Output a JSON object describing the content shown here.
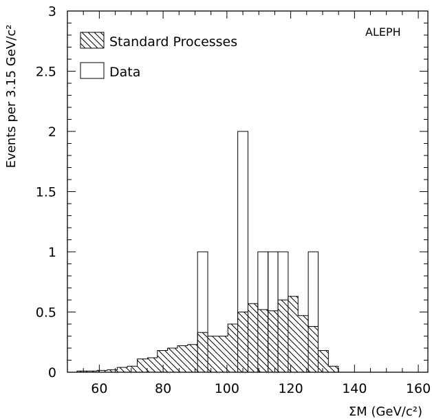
{
  "chart_data": {
    "type": "bar",
    "title": "",
    "experiment_label": "ALEPH",
    "xlabel": "ΣM (GeV/c²)",
    "ylabel": "Events per 3.15 GeV/c²",
    "xlim": [
      50,
      163
    ],
    "ylim": [
      0,
      3
    ],
    "xticks": [
      60,
      80,
      100,
      120,
      140,
      160
    ],
    "yticks": [
      0,
      0.5,
      1,
      1.5,
      2,
      2.5,
      3
    ],
    "ytick_labels": [
      "0",
      "0.5",
      "1",
      "1.5",
      "2",
      "2.5",
      "3"
    ],
    "legend_position": "top-left",
    "grid": false,
    "series": [
      {
        "name": "Standard Processes",
        "style": "hatched-histogram",
        "bins": [
          {
            "lo": 53.0,
            "hi": 56.2,
            "value": 0.01
          },
          {
            "lo": 56.2,
            "hi": 59.3,
            "value": 0.01
          },
          {
            "lo": 59.3,
            "hi": 62.5,
            "value": 0.015
          },
          {
            "lo": 62.5,
            "hi": 65.6,
            "value": 0.02
          },
          {
            "lo": 65.6,
            "hi": 68.8,
            "value": 0.04
          },
          {
            "lo": 68.8,
            "hi": 71.9,
            "value": 0.05
          },
          {
            "lo": 71.9,
            "hi": 75.1,
            "value": 0.11
          },
          {
            "lo": 75.1,
            "hi": 78.2,
            "value": 0.12
          },
          {
            "lo": 78.2,
            "hi": 81.4,
            "value": 0.18
          },
          {
            "lo": 81.4,
            "hi": 84.5,
            "value": 0.2
          },
          {
            "lo": 84.5,
            "hi": 87.7,
            "value": 0.22
          },
          {
            "lo": 87.7,
            "hi": 90.8,
            "value": 0.23
          },
          {
            "lo": 90.8,
            "hi": 94.0,
            "value": 0.33
          },
          {
            "lo": 94.0,
            "hi": 97.1,
            "value": 0.3
          },
          {
            "lo": 97.1,
            "hi": 100.3,
            "value": 0.3
          },
          {
            "lo": 100.3,
            "hi": 103.4,
            "value": 0.4
          },
          {
            "lo": 103.4,
            "hi": 106.6,
            "value": 0.5
          },
          {
            "lo": 106.6,
            "hi": 109.7,
            "value": 0.57
          },
          {
            "lo": 109.7,
            "hi": 112.9,
            "value": 0.52
          },
          {
            "lo": 112.9,
            "hi": 116.0,
            "value": 0.51
          },
          {
            "lo": 116.0,
            "hi": 119.2,
            "value": 0.6
          },
          {
            "lo": 119.2,
            "hi": 122.3,
            "value": 0.63
          },
          {
            "lo": 122.3,
            "hi": 125.5,
            "value": 0.47
          },
          {
            "lo": 125.5,
            "hi": 128.6,
            "value": 0.38
          },
          {
            "lo": 128.6,
            "hi": 131.8,
            "value": 0.18
          },
          {
            "lo": 131.8,
            "hi": 134.9,
            "value": 0.05
          }
        ]
      },
      {
        "name": "Data",
        "style": "outline-histogram",
        "bins": [
          {
            "lo": 90.8,
            "hi": 94.0,
            "value": 1
          },
          {
            "lo": 103.4,
            "hi": 106.6,
            "value": 2
          },
          {
            "lo": 109.7,
            "hi": 112.9,
            "value": 1
          },
          {
            "lo": 112.9,
            "hi": 116.0,
            "value": 1
          },
          {
            "lo": 116.0,
            "hi": 119.2,
            "value": 1
          },
          {
            "lo": 125.5,
            "hi": 128.6,
            "value": 1
          }
        ]
      }
    ]
  }
}
